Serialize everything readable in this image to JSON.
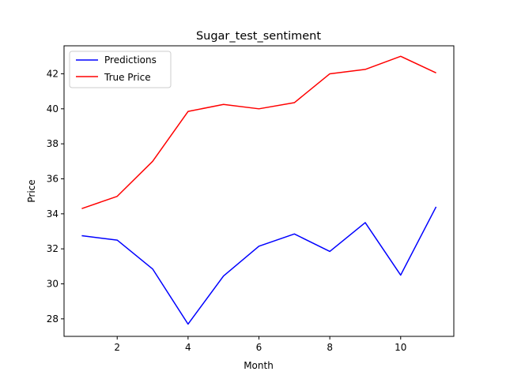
{
  "chart_data": {
    "type": "line",
    "title": "Sugar_test_sentiment",
    "xlabel": "Month",
    "ylabel": "Price",
    "x": [
      1,
      2,
      3,
      4,
      5,
      6,
      7,
      8,
      9,
      10,
      11
    ],
    "xlim": [
      0.5,
      11.5
    ],
    "ylim": [
      27.0,
      43.6
    ],
    "xticks": [
      2,
      4,
      6,
      8,
      10
    ],
    "yticks": [
      28,
      30,
      32,
      34,
      36,
      38,
      40,
      42
    ],
    "grid": false,
    "legend_position": "upper-left",
    "series": [
      {
        "name": "Predictions",
        "color": "#0000ff",
        "values": [
          32.75,
          32.5,
          30.85,
          27.7,
          30.45,
          32.15,
          32.85,
          31.85,
          33.5,
          30.5,
          34.4
        ]
      },
      {
        "name": "True Price",
        "color": "#ff0000",
        "values": [
          34.3,
          35.0,
          37.0,
          39.85,
          40.25,
          40.0,
          40.35,
          42.0,
          42.25,
          43.0,
          42.05
        ]
      }
    ]
  }
}
